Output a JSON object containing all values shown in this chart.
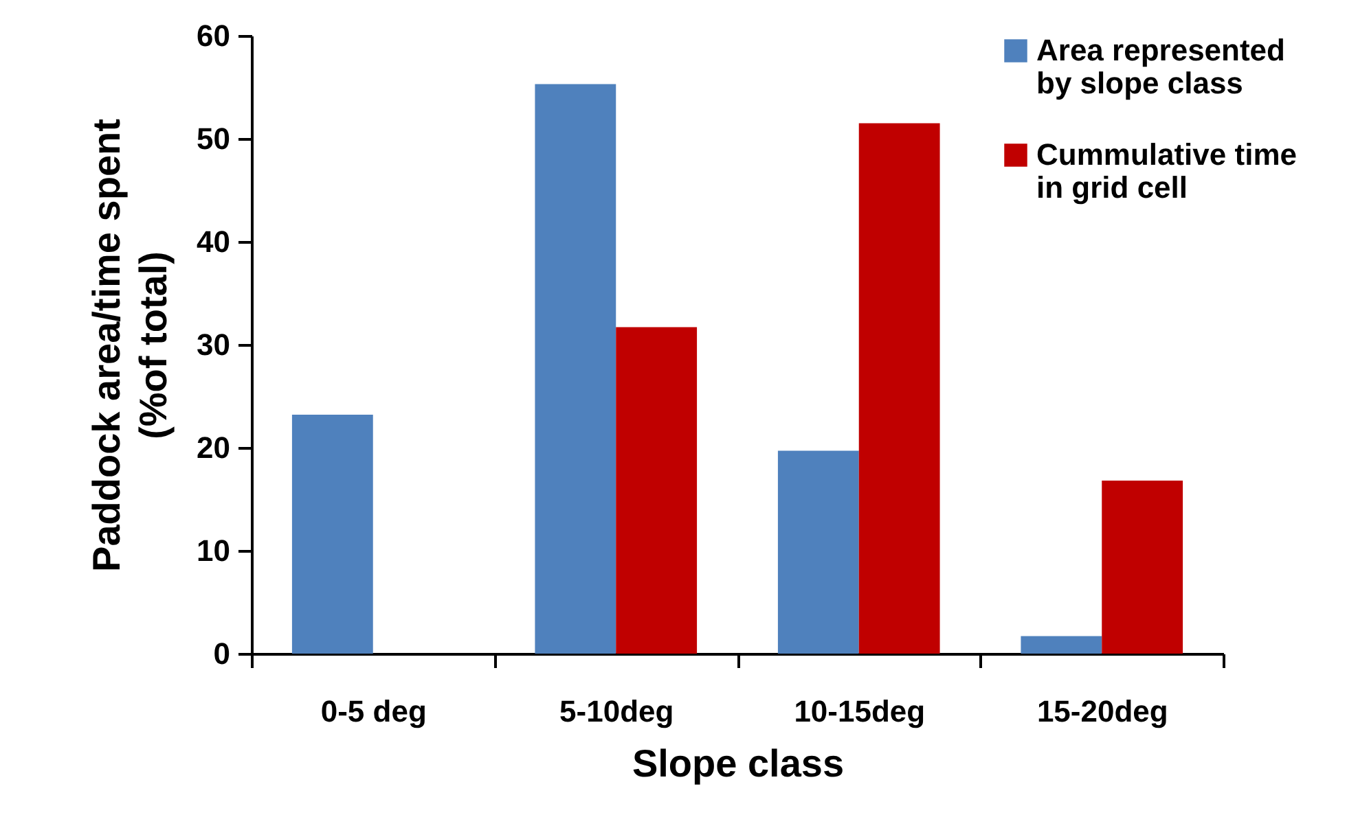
{
  "chart_data": {
    "type": "bar",
    "xlabel": "Slope class",
    "ylabel": "Paddock area/time spent (%of total)",
    "categories": [
      "0-5 deg",
      "5-10deg",
      "10-15deg",
      "15-20deg"
    ],
    "series": [
      {
        "name": "Area represented by slope class",
        "color": "#4f81bd",
        "values": [
          23.2,
          55.3,
          19.7,
          1.7
        ]
      },
      {
        "name": "Cummulative time in grid cell",
        "color": "#c00000",
        "values": [
          null,
          31.7,
          51.5,
          16.8
        ]
      }
    ],
    "ylim": [
      0,
      60
    ],
    "yticks": [
      0,
      10,
      20,
      30,
      40,
      50,
      60
    ],
    "grid": false,
    "legend": "top right"
  }
}
